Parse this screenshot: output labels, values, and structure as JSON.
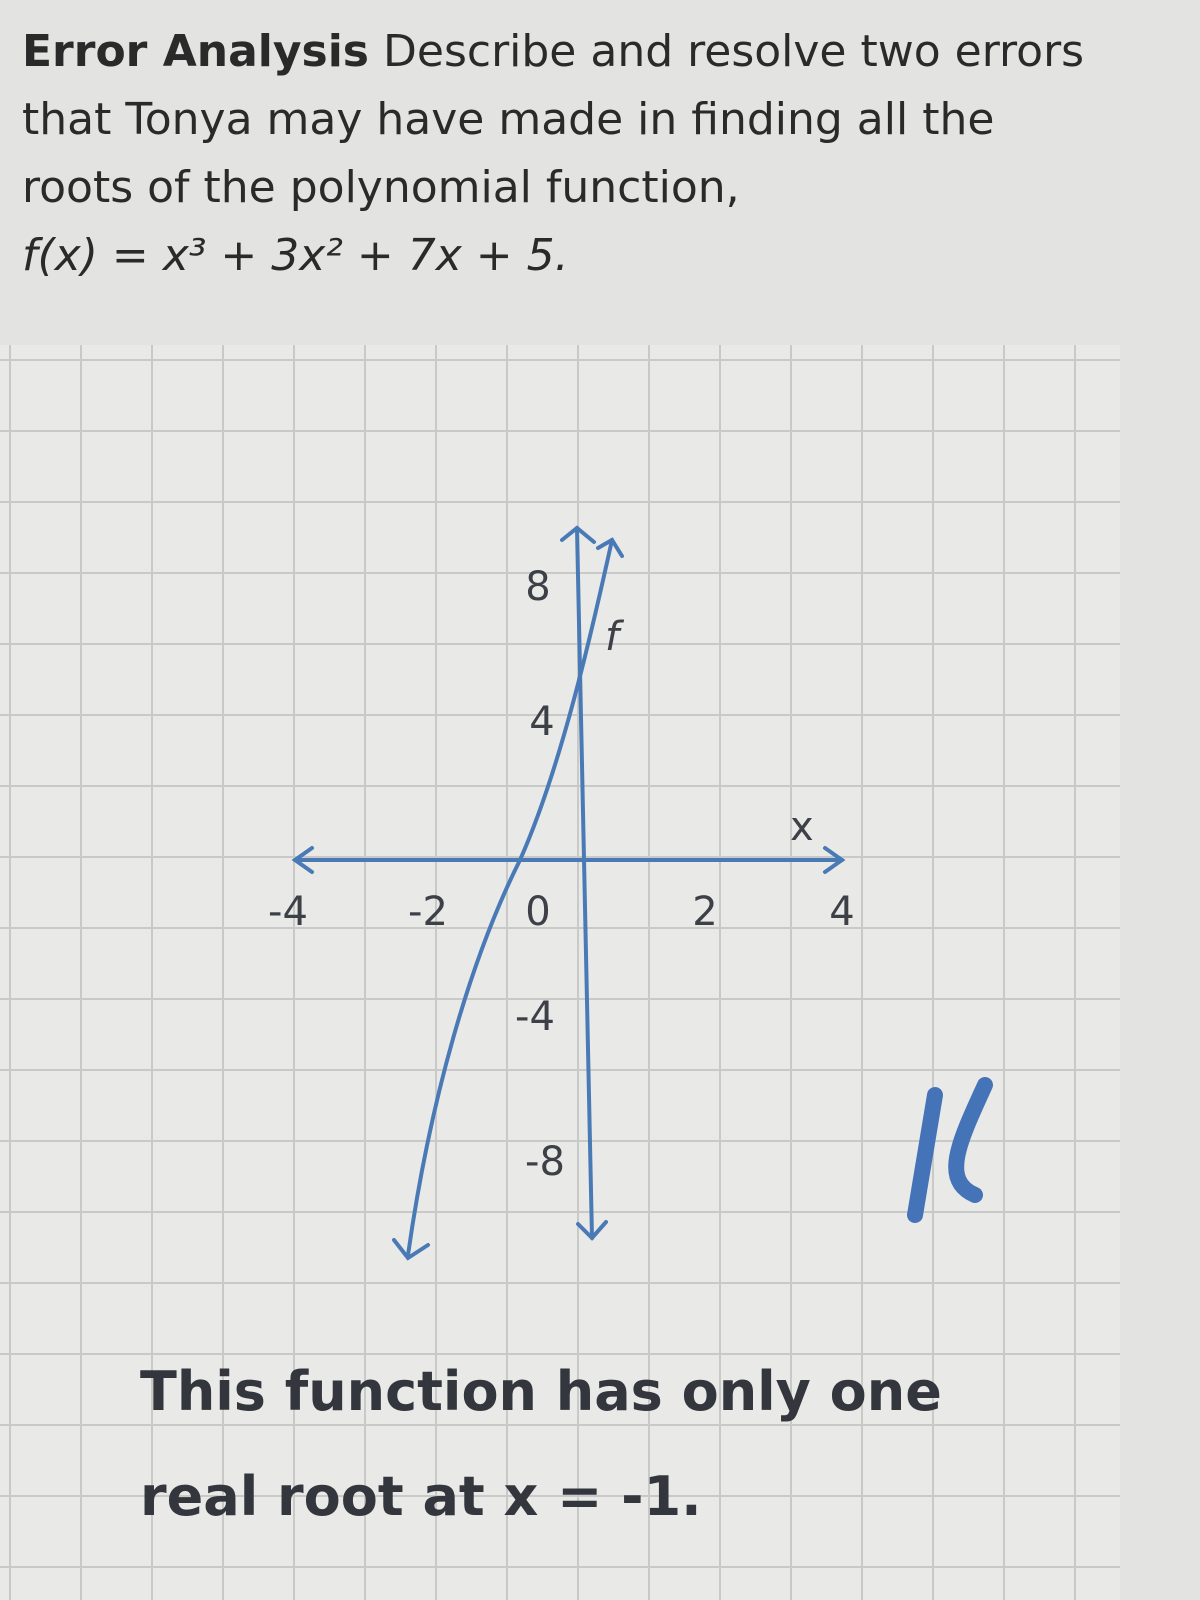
{
  "problem": {
    "heading": "Error Analysis",
    "prompt": "Describe and resolve two errors that Tonya may have made in finding all the roots of the polynomial function,",
    "function": "f(x) = x³ + 3x² + 7x + 5.",
    "graph": {
      "x_labels": [
        "-4",
        "-2",
        "0",
        "2",
        "4"
      ],
      "y_labels": [
        "8",
        "4",
        "-4",
        "-8"
      ],
      "x_axis_label": "x",
      "curve_label": "f"
    },
    "answer": [
      "This function has only one",
      "real root at x = -1."
    ]
  }
}
